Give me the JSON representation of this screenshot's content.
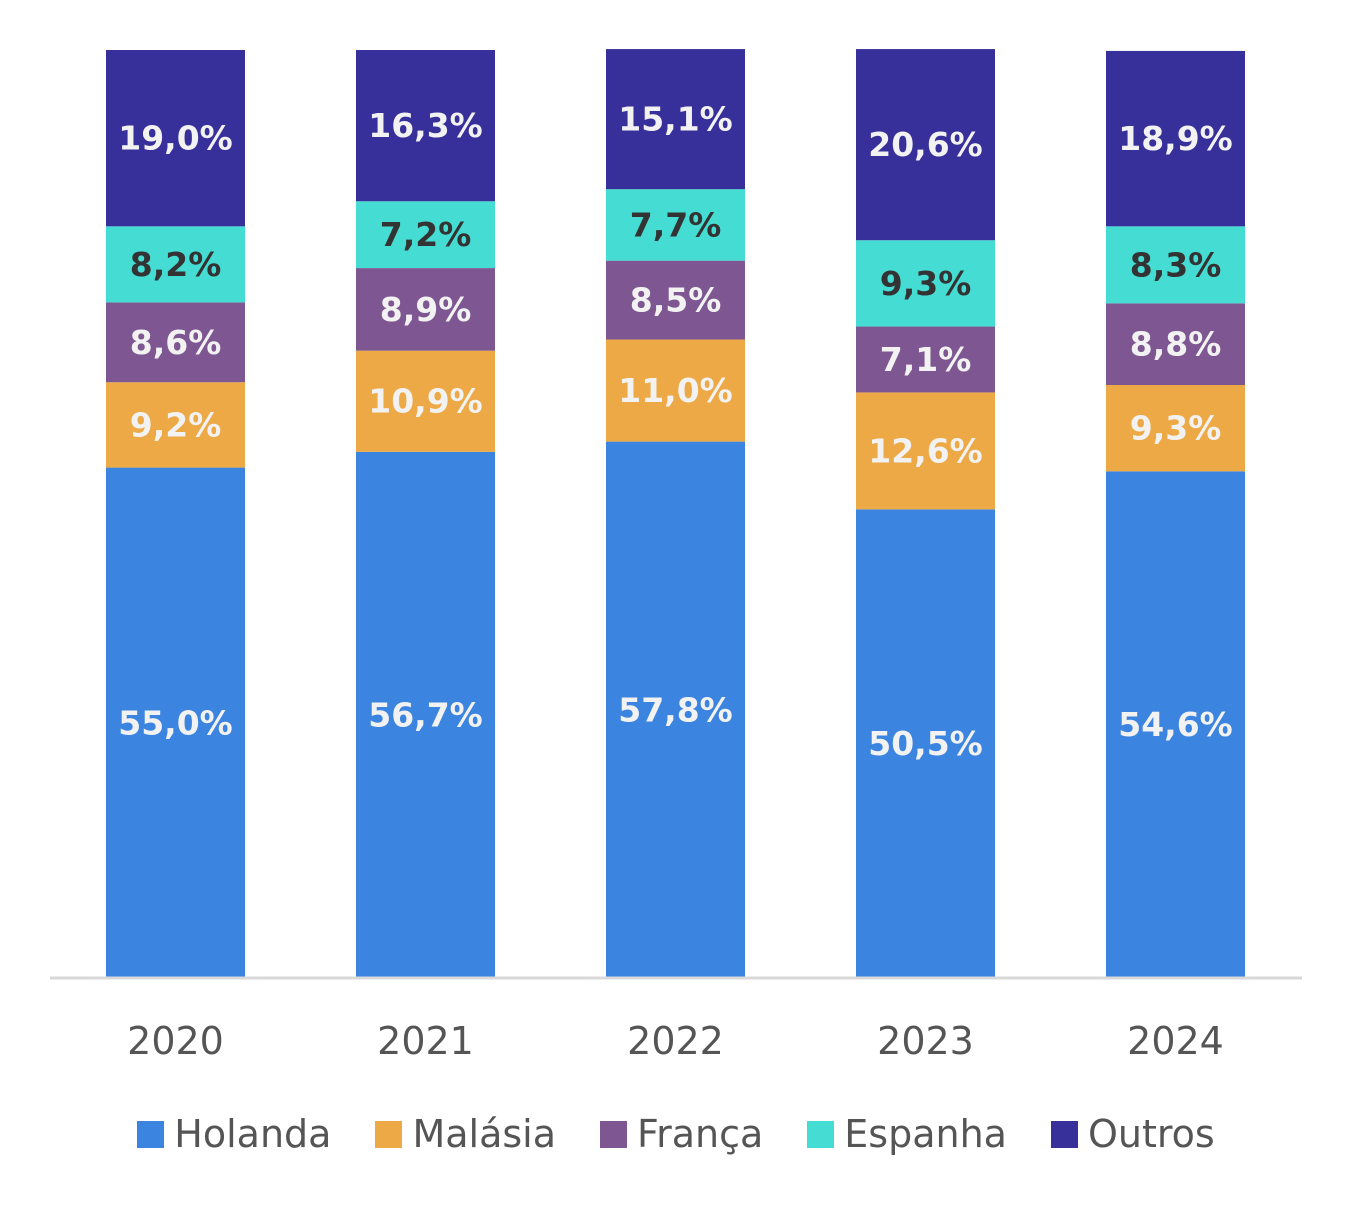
{
  "chart_data": {
    "type": "bar",
    "stacked": true,
    "categories": [
      "2020",
      "2021",
      "2022",
      "2023",
      "2024"
    ],
    "series": [
      {
        "name": "Holanda",
        "color": "#3B84E0",
        "label_color": "#F2F2F2",
        "values": [
          55.0,
          56.7,
          57.8,
          50.5,
          54.6
        ],
        "labels": [
          "55,0%",
          "56,7%",
          "57,8%",
          "50,5%",
          "54,6%"
        ]
      },
      {
        "name": "Malásia",
        "color": "#EDA945",
        "label_color": "#F2F2F2",
        "values": [
          9.2,
          10.9,
          11.0,
          12.6,
          9.3
        ],
        "labels": [
          "9,2%",
          "10,9%",
          "11,0%",
          "12,6%",
          "9,3%"
        ]
      },
      {
        "name": "França",
        "color": "#7E5792",
        "label_color": "#F2F2F2",
        "values": [
          8.6,
          8.9,
          8.5,
          7.1,
          8.8
        ],
        "labels": [
          "8,6%",
          "8,9%",
          "8,5%",
          "7,1%",
          "8,8%"
        ]
      },
      {
        "name": "Espanha",
        "color": "#45DCD3",
        "label_color": "#333333",
        "values": [
          8.2,
          7.2,
          7.7,
          9.3,
          8.3
        ],
        "labels": [
          "8,2%",
          "7,2%",
          "7,7%",
          "9,3%",
          "8,3%"
        ]
      },
      {
        "name": "Outros",
        "color": "#38309A",
        "label_color": "#F2F2F2",
        "values": [
          19.0,
          16.3,
          15.1,
          20.6,
          18.9
        ],
        "labels": [
          "19,0%",
          "16,3%",
          "15,1%",
          "20,6%",
          "18,9%"
        ]
      }
    ],
    "ylim": [
      0,
      100
    ],
    "legend_position": "bottom",
    "grid": false,
    "axis_color": "#D9D9D9"
  }
}
